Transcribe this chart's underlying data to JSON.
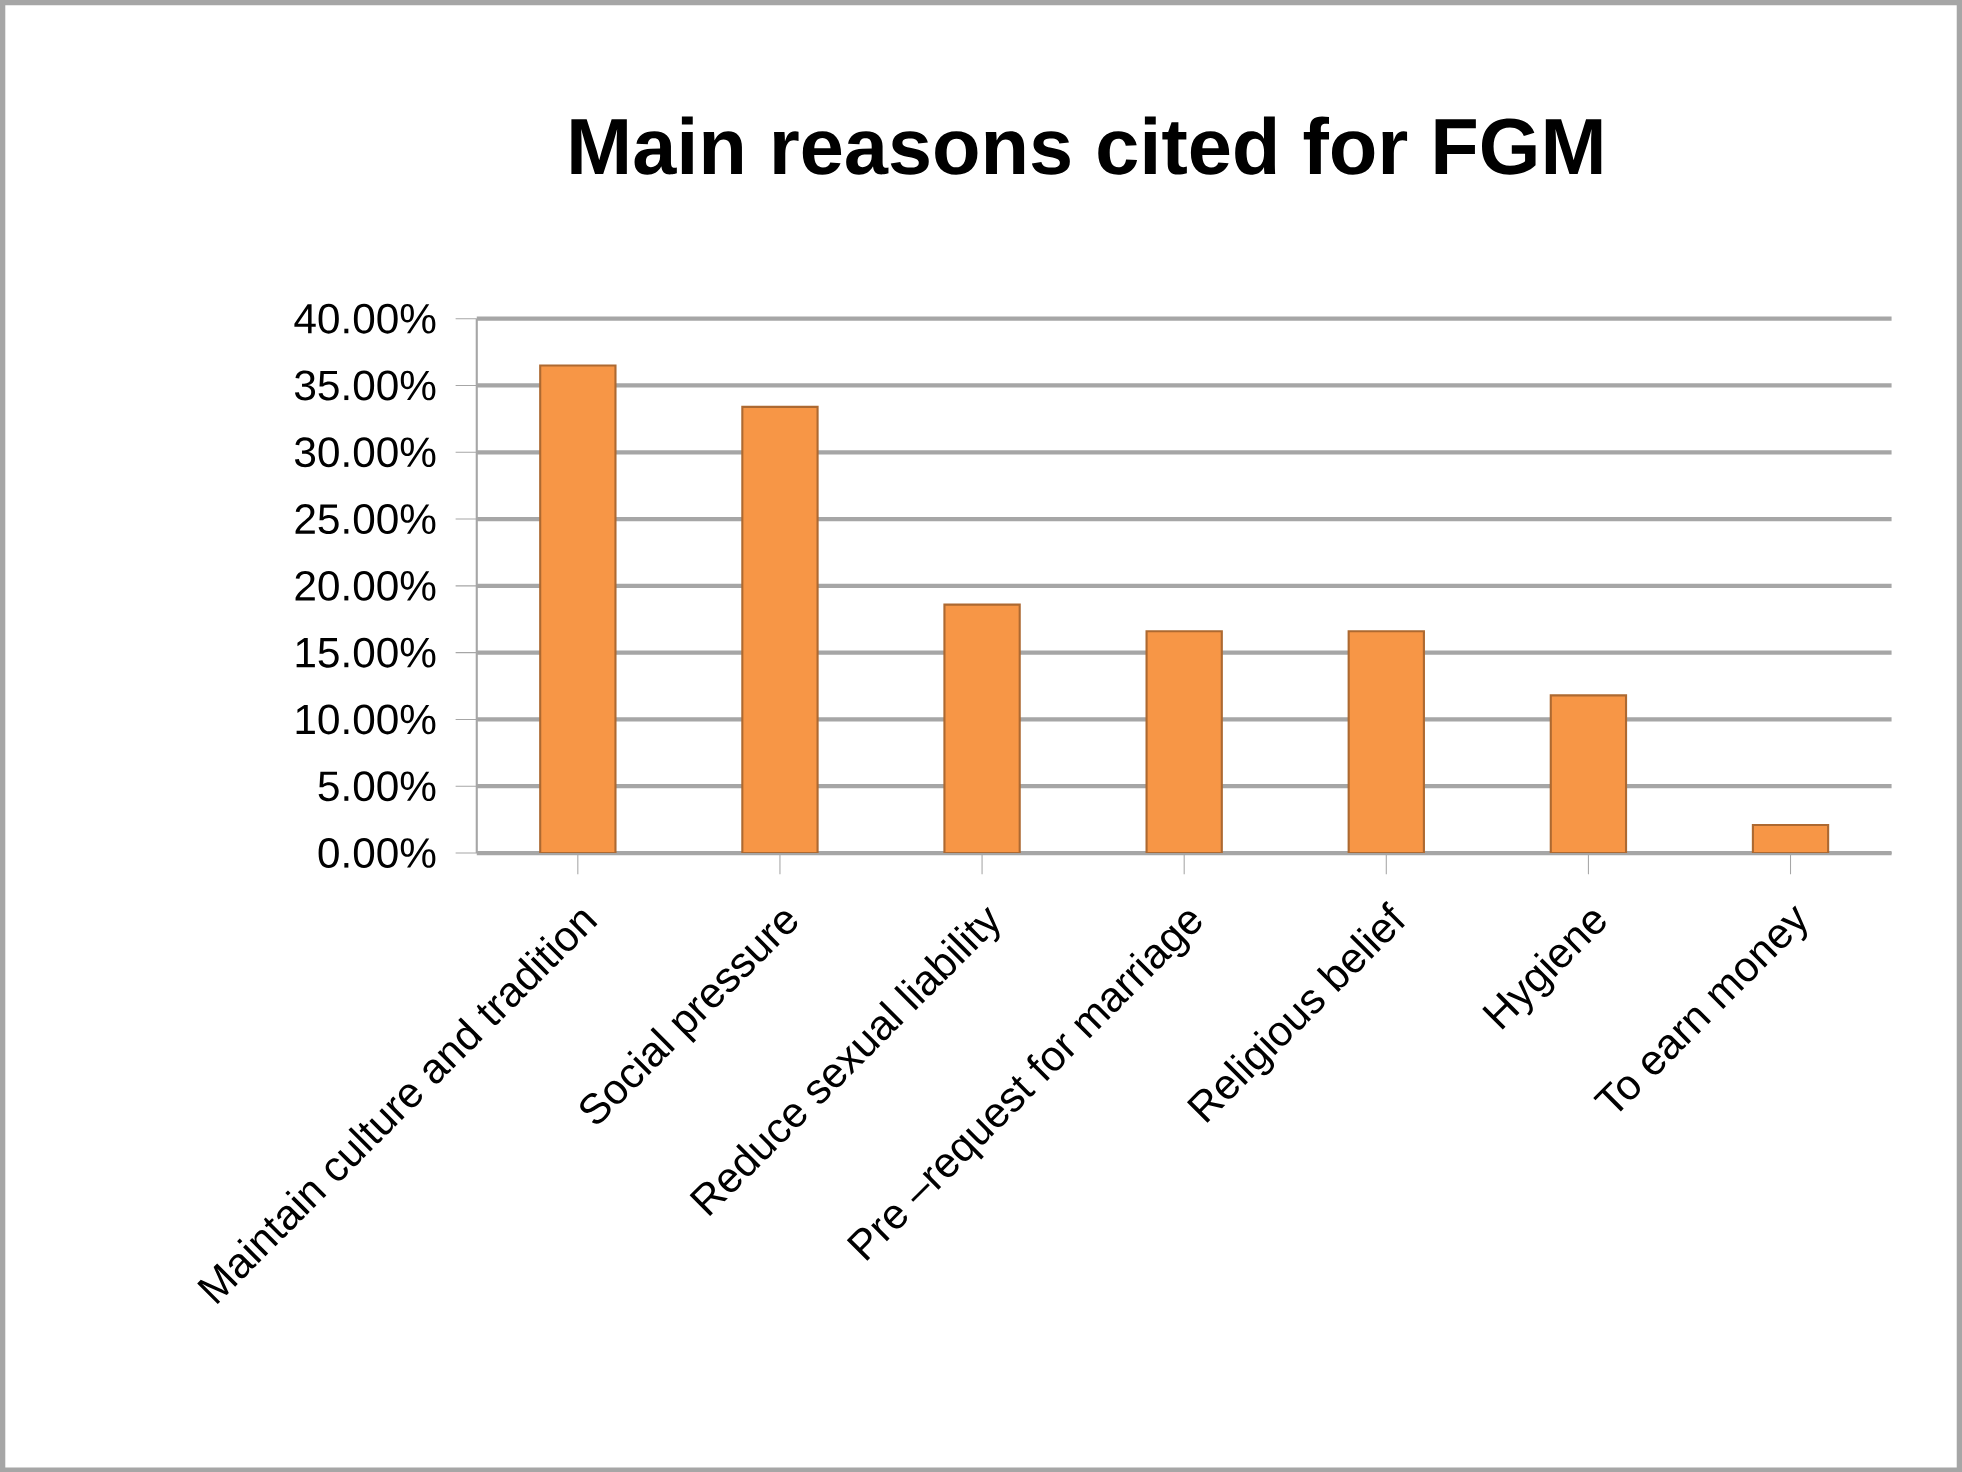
{
  "chart_data": {
    "type": "bar",
    "title": "Main reasons cited for FGM",
    "categories": [
      "Maintain culture and tradition",
      "Social pressure",
      "Reduce sexual liability",
      "Pre –request for marriage",
      "Religious belief",
      "Hygiene",
      "To earn money"
    ],
    "values": [
      36.5,
      33.4,
      18.6,
      16.6,
      16.6,
      11.8,
      2.1
    ],
    "color": "#f79646",
    "ylim": [
      0,
      40
    ],
    "yticks": [
      {
        "value": 0,
        "label": "0.00%"
      },
      {
        "value": 5,
        "label": "5.00%"
      },
      {
        "value": 10,
        "label": "10.00%"
      },
      {
        "value": 15,
        "label": "15.00%"
      },
      {
        "value": 20,
        "label": "20.00%"
      },
      {
        "value": 25,
        "label": "25.00%"
      },
      {
        "value": 30,
        "label": "30.00%"
      },
      {
        "value": 35,
        "label": "35.00%"
      },
      {
        "value": 40,
        "label": "40.00%"
      }
    ],
    "grid": "y"
  }
}
